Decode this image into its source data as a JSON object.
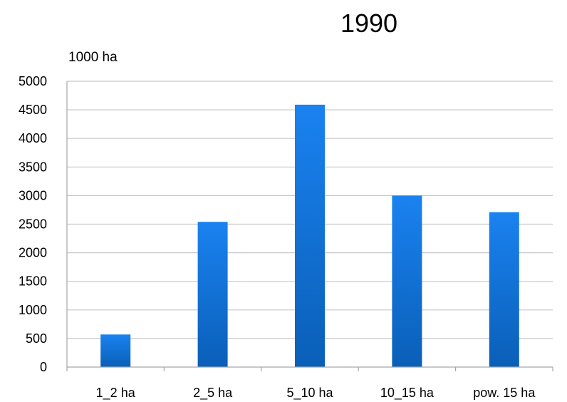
{
  "chart_data": {
    "type": "bar",
    "title": "1990",
    "ylabel": "1000 ha",
    "xlabel": "",
    "categories": [
      "1_2 ha",
      "2_5 ha",
      "5_10 ha",
      "10_15 ha",
      "pow. 15 ha"
    ],
    "values": [
      570,
      2540,
      4590,
      3000,
      2710
    ],
    "ylim": [
      0,
      5000
    ],
    "yticks": [
      0,
      500,
      1000,
      1500,
      2000,
      2500,
      3000,
      3500,
      4000,
      4500,
      5000
    ],
    "grid": true,
    "bar_color_top": "#1a82f0",
    "bar_color_bottom": "#0a5fb8"
  }
}
